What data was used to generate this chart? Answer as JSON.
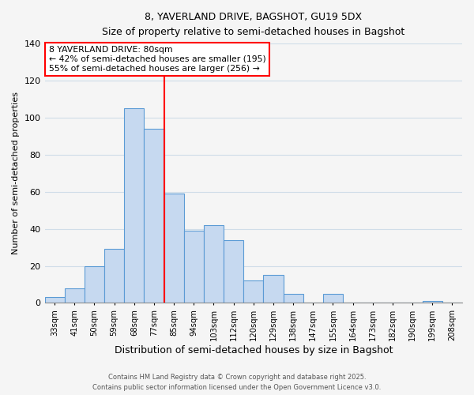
{
  "title1": "8, YAVERLAND DRIVE, BAGSHOT, GU19 5DX",
  "title2": "Size of property relative to semi-detached houses in Bagshot",
  "xlabel": "Distribution of semi-detached houses by size in Bagshot",
  "ylabel": "Number of semi-detached properties",
  "bar_labels": [
    "33sqm",
    "41sqm",
    "50sqm",
    "59sqm",
    "68sqm",
    "77sqm",
    "85sqm",
    "94sqm",
    "103sqm",
    "112sqm",
    "120sqm",
    "129sqm",
    "138sqm",
    "147sqm",
    "155sqm",
    "164sqm",
    "173sqm",
    "182sqm",
    "190sqm",
    "199sqm",
    "208sqm"
  ],
  "bar_values": [
    3,
    8,
    20,
    29,
    105,
    94,
    59,
    39,
    42,
    34,
    12,
    15,
    5,
    0,
    5,
    0,
    0,
    0,
    0,
    1,
    0
  ],
  "bar_color": "#c6d9f0",
  "bar_edge_color": "#5b9bd5",
  "vline_x": 5.5,
  "vline_color": "red",
  "annotation_title": "8 YAVERLAND DRIVE: 80sqm",
  "annotation_line1": "← 42% of semi-detached houses are smaller (195)",
  "annotation_line2": "55% of semi-detached houses are larger (256) →",
  "annotation_box_color": "white",
  "annotation_box_edge": "red",
  "ylim": [
    0,
    140
  ],
  "yticks": [
    0,
    20,
    40,
    60,
    80,
    100,
    120,
    140
  ],
  "footer1": "Contains HM Land Registry data © Crown copyright and database right 2025.",
  "footer2": "Contains public sector information licensed under the Open Government Licence v3.0.",
  "bg_color": "#f5f5f5",
  "grid_color": "#d0dde8"
}
